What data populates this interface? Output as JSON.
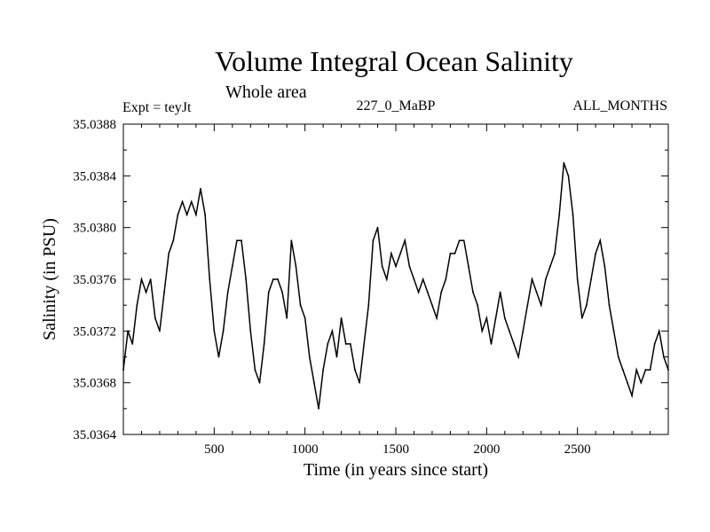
{
  "chart_data": {
    "type": "line",
    "title": "Volume Integral Ocean Salinity",
    "subtitle": "Whole area",
    "annotations": {
      "left": "Expt = teyJt",
      "center": "227_0_MaBP",
      "right": "ALL_MONTHS"
    },
    "xlabel": "Time (in years since start)",
    "ylabel": "Salinity (in PSU)",
    "xlim": [
      0,
      3000
    ],
    "ylim": [
      35.0364,
      35.0388
    ],
    "x_ticks": [
      500,
      1000,
      1500,
      2000,
      2500
    ],
    "x_tick_labels": [
      "500",
      "1000",
      "1500",
      "2000",
      "2500"
    ],
    "y_ticks": [
      35.0364,
      35.0368,
      35.0372,
      35.0376,
      35.038,
      35.0384,
      35.0388
    ],
    "y_tick_labels": [
      "35.0364",
      "35.0368",
      "35.0372",
      "35.0376",
      "35.0380",
      "35.0384",
      "35.0388"
    ],
    "grid": false,
    "series": [
      {
        "name": "Salinity",
        "color": "#000000",
        "x": [
          0,
          25,
          50,
          75,
          100,
          125,
          150,
          175,
          200,
          225,
          250,
          275,
          300,
          325,
          350,
          375,
          400,
          425,
          450,
          475,
          500,
          525,
          550,
          575,
          600,
          625,
          650,
          675,
          700,
          725,
          750,
          775,
          800,
          825,
          850,
          875,
          900,
          925,
          950,
          975,
          1000,
          1025,
          1050,
          1075,
          1100,
          1125,
          1150,
          1175,
          1200,
          1225,
          1250,
          1275,
          1300,
          1325,
          1350,
          1375,
          1400,
          1425,
          1450,
          1475,
          1500,
          1525,
          1550,
          1575,
          1600,
          1625,
          1650,
          1675,
          1700,
          1725,
          1750,
          1775,
          1800,
          1825,
          1850,
          1875,
          1900,
          1925,
          1950,
          1975,
          2000,
          2025,
          2050,
          2075,
          2100,
          2125,
          2150,
          2175,
          2200,
          2225,
          2250,
          2275,
          2300,
          2325,
          2350,
          2375,
          2400,
          2425,
          2450,
          2475,
          2500,
          2525,
          2550,
          2575,
          2600,
          2625,
          2650,
          2675,
          2700,
          2725,
          2750,
          2775,
          2800,
          2825,
          2850,
          2875,
          2900,
          2925,
          2950,
          2975,
          3000
        ],
        "values": [
          35.0369,
          35.0372,
          35.0371,
          35.0374,
          35.0376,
          35.0375,
          35.0376,
          35.0373,
          35.0372,
          35.0375,
          35.0378,
          35.0379,
          35.0381,
          35.0382,
          35.0381,
          35.0382,
          35.0381,
          35.0383,
          35.0381,
          35.0376,
          35.0372,
          35.037,
          35.0372,
          35.0375,
          35.0377,
          35.0379,
          35.0379,
          35.0376,
          35.0372,
          35.0369,
          35.0368,
          35.0371,
          35.0375,
          35.0376,
          35.0376,
          35.0375,
          35.0373,
          35.0379,
          35.0377,
          35.0374,
          35.0373,
          35.037,
          35.0368,
          35.0366,
          35.0369,
          35.0371,
          35.0372,
          35.037,
          35.0373,
          35.0371,
          35.0371,
          35.0369,
          35.0368,
          35.0371,
          35.0374,
          35.0379,
          35.038,
          35.0377,
          35.0376,
          35.0378,
          35.0377,
          35.0378,
          35.0379,
          35.0377,
          35.0376,
          35.0375,
          35.0376,
          35.0375,
          35.0374,
          35.0373,
          35.0375,
          35.0376,
          35.0378,
          35.0378,
          35.0379,
          35.0379,
          35.0377,
          35.0375,
          35.0374,
          35.0372,
          35.0373,
          35.0371,
          35.0373,
          35.0375,
          35.0373,
          35.0372,
          35.0371,
          35.037,
          35.0372,
          35.0374,
          35.0376,
          35.0375,
          35.0374,
          35.0376,
          35.0377,
          35.0378,
          35.0381,
          35.0385,
          35.0384,
          35.0381,
          35.0376,
          35.0373,
          35.0374,
          35.0376,
          35.0378,
          35.0379,
          35.0377,
          35.0374,
          35.0372,
          35.037,
          35.0369,
          35.0368,
          35.0367,
          35.0369,
          35.0368,
          35.0369,
          35.0369,
          35.0371,
          35.0372,
          35.037,
          35.0369
        ]
      }
    ]
  }
}
